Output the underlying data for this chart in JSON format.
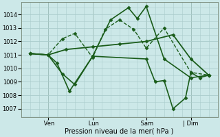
{
  "bg_color": "#cce8e8",
  "grid_color": "#aacccc",
  "line_color": "#1a5c1a",
  "xlabel": "Pression niveau de la mer( hPa )",
  "ylim": [
    1006.4,
    1014.9
  ],
  "yticks": [
    1007,
    1008,
    1009,
    1010,
    1011,
    1012,
    1013,
    1014
  ],
  "xlim": [
    -0.5,
    10.5
  ],
  "xtick_labels": [
    " Ven",
    " Lun",
    " Sam",
    "| Dim"
  ],
  "xtick_positions": [
    1.0,
    3.5,
    6.5,
    9.0
  ],
  "series": [
    {
      "x": [
        0,
        1,
        2,
        3.5,
        5,
        6.5,
        8,
        9,
        10
      ],
      "y": [
        1011.1,
        1011.0,
        1011.4,
        1011.6,
        1011.8,
        1012.0,
        1012.5,
        1010.7,
        1009.5
      ],
      "linestyle": "-",
      "linewidth": 1.3
    },
    {
      "x": [
        0,
        1,
        1.8,
        2.5,
        3.5,
        4.2,
        5.0,
        5.8,
        6.5,
        7.5,
        9,
        10
      ],
      "y": [
        1011.1,
        1011.0,
        1012.2,
        1012.6,
        1010.8,
        1012.9,
        1013.6,
        1012.9,
        1011.5,
        1013.0,
        1009.7,
        1009.5
      ],
      "linestyle": "--",
      "linewidth": 1.0
    },
    {
      "x": [
        0,
        1,
        1.8,
        2.5,
        3.5,
        4.5,
        5.5,
        6.0,
        6.5,
        7.5,
        9,
        10
      ],
      "y": [
        1011.1,
        1011.0,
        1009.6,
        1008.8,
        1010.9,
        1013.6,
        1014.5,
        1013.7,
        1014.6,
        1010.7,
        1009.3,
        1009.5
      ],
      "linestyle": "-",
      "linewidth": 1.2
    },
    {
      "x": [
        0,
        1,
        1.5,
        2.2,
        3.5,
        6.5,
        7.0,
        7.5,
        8.0,
        8.7,
        9,
        9.5,
        10
      ],
      "y": [
        1011.1,
        1011.0,
        1010.4,
        1008.3,
        1010.9,
        1010.7,
        1009.0,
        1009.1,
        1007.0,
        1007.8,
        1009.7,
        1009.3,
        1009.5
      ],
      "linestyle": "-",
      "linewidth": 1.2
    }
  ]
}
